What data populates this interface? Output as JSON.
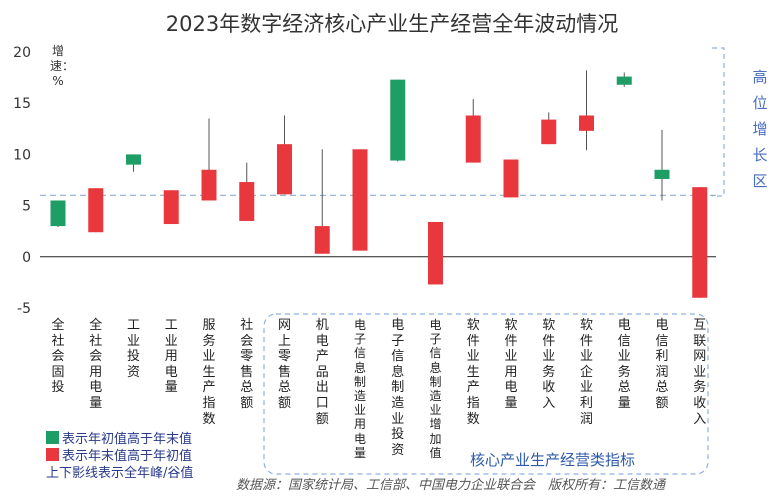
{
  "chart_data": {
    "type": "candlestick",
    "title": "2023年数字经济核心产业生产经营全年波动情况",
    "ylabel": "增速：%",
    "ylim": [
      -5,
      20
    ],
    "yticks": [
      "-5",
      "0",
      "5",
      "10",
      "15",
      "20"
    ],
    "reference_line": 6,
    "colors": {
      "up": "#e8383d",
      "down": "#1e9e64"
    },
    "categories": [
      {
        "label": "全社会固投",
        "open": 5.5,
        "close": 3.0,
        "low": 2.9,
        "high": 5.5
      },
      {
        "label": "全社会用电量",
        "open": 2.4,
        "close": 6.7,
        "low": 2.4,
        "high": 6.7
      },
      {
        "label": "工业投资",
        "open": 10.0,
        "close": 9.0,
        "low": 8.3,
        "high": 10.0
      },
      {
        "label": "工业用电量",
        "open": 3.2,
        "close": 6.5,
        "low": 3.2,
        "high": 6.5
      },
      {
        "label": "服务业生产指数",
        "open": 5.5,
        "close": 8.5,
        "low": 5.5,
        "high": 13.5
      },
      {
        "label": "社会零售总额",
        "open": 3.5,
        "close": 7.3,
        "low": 3.5,
        "high": 9.2
      },
      {
        "label": "网上零售总额",
        "open": 6.1,
        "close": 11.0,
        "low": 6.1,
        "high": 13.8
      },
      {
        "label": "机电产品出口额",
        "open": 0.3,
        "close": 3.0,
        "low": 0.3,
        "high": 10.5
      },
      {
        "label": "电子信息制造业用电量",
        "open": 0.6,
        "close": 10.5,
        "low": 0.6,
        "high": 10.5
      },
      {
        "label": "电子信息制造业投资",
        "open": 17.3,
        "close": 9.4,
        "low": 9.3,
        "high": 17.3
      },
      {
        "label": "电子信息制造业增加值",
        "open": -2.7,
        "close": 3.4,
        "low": -2.7,
        "high": 3.4
      },
      {
        "label": "软件业生产指数",
        "open": 9.2,
        "close": 13.8,
        "low": 9.2,
        "high": 15.4
      },
      {
        "label": "软件业用电量",
        "open": 5.8,
        "close": 9.5,
        "low": 5.8,
        "high": 9.5
      },
      {
        "label": "软件业务收入",
        "open": 11.0,
        "close": 13.4,
        "low": 11.0,
        "high": 14.1
      },
      {
        "label": "软件业企业利润",
        "open": 12.3,
        "close": 13.8,
        "low": 10.4,
        "high": 18.2
      },
      {
        "label": "电信业务总量",
        "open": 17.6,
        "close": 16.8,
        "low": 16.6,
        "high": 18.0
      },
      {
        "label": "电信利润总额",
        "open": 8.5,
        "close": 7.6,
        "low": 5.5,
        "high": 12.4
      },
      {
        "label": "互联网业务收入",
        "open": -4.0,
        "close": 6.8,
        "low": -4.0,
        "high": 6.8
      }
    ],
    "legend": {
      "green": "表示年初值高于年末值",
      "red": "表示年末值高于年初值",
      "note": "上下影线表示全年峰/谷值"
    },
    "region_label": "高位增长区",
    "core_label": "核心产业生产经营类指标",
    "source": "数据源：国家统计局、工信部、中国电力企业联合会　版权所有：工信数通"
  }
}
